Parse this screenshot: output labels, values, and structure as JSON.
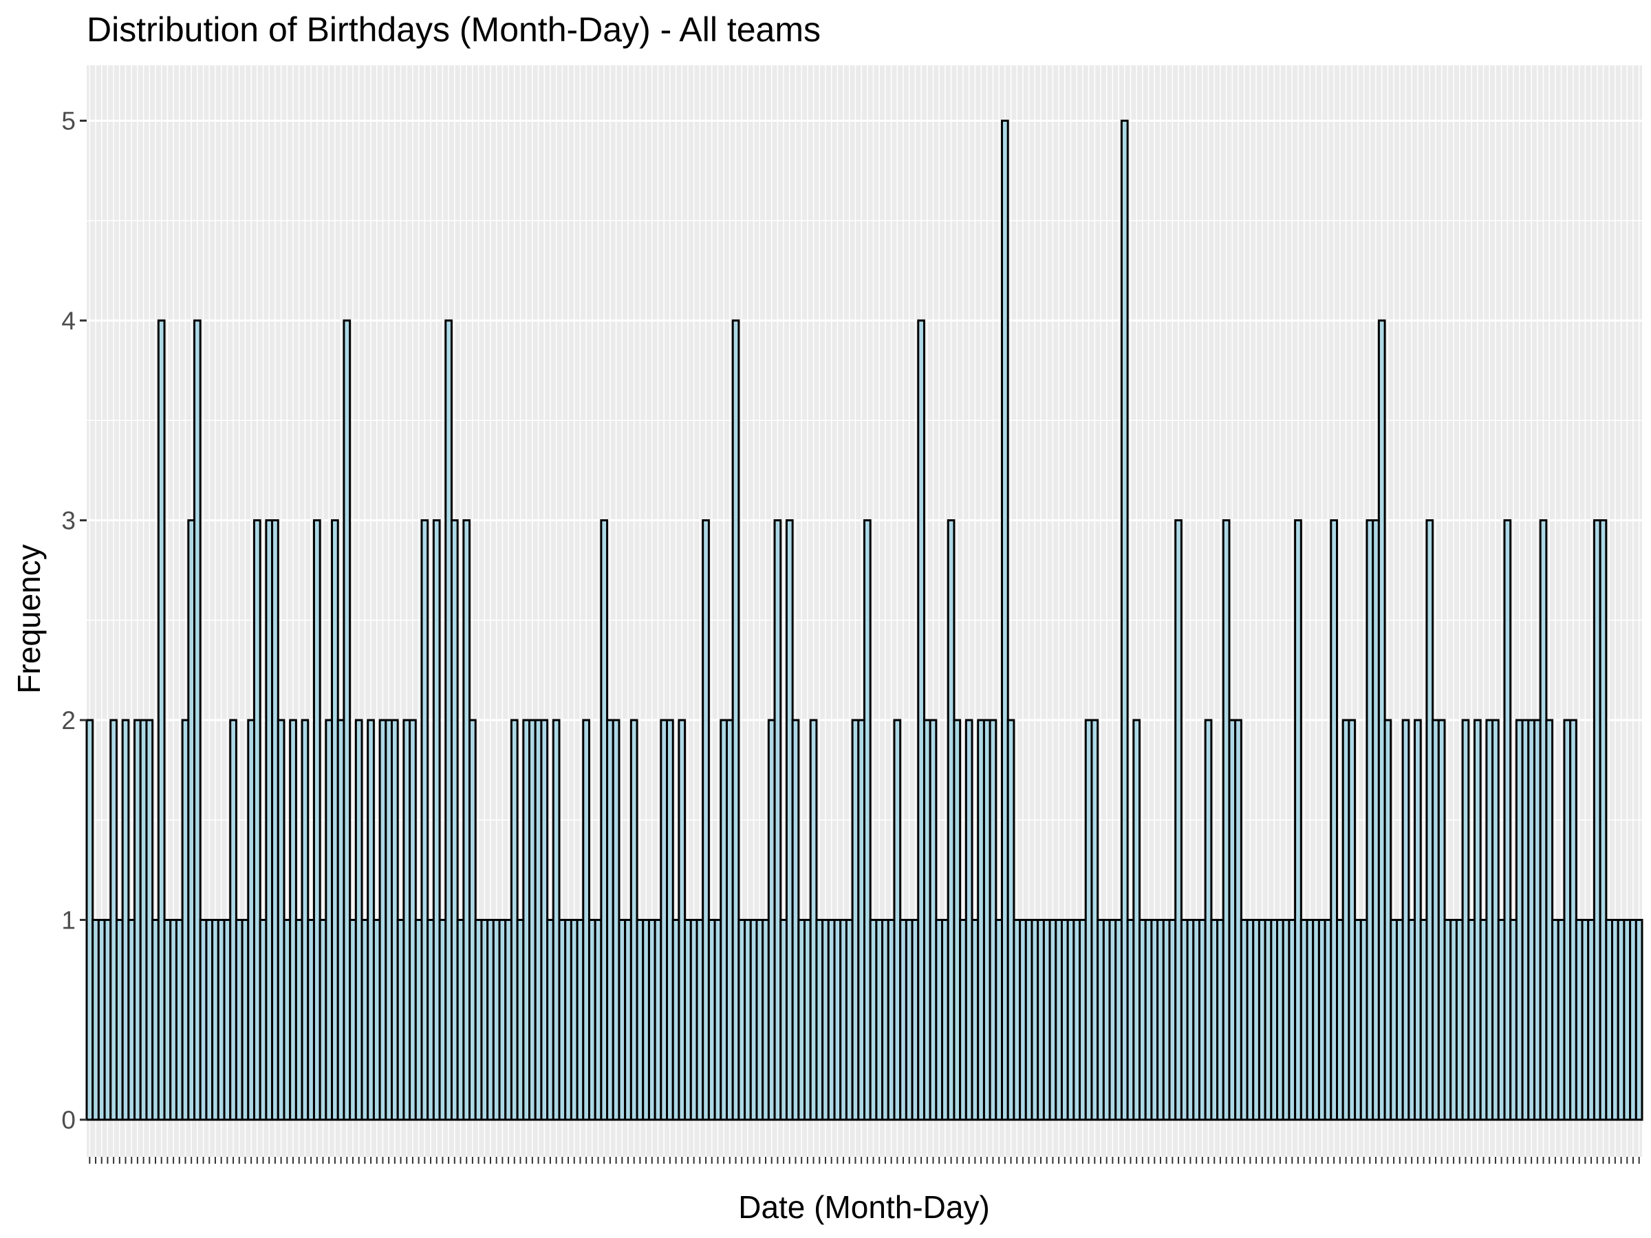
{
  "chart_data": {
    "type": "bar",
    "title": "Distribution of Birthdays (Month-Day) - All teams",
    "xlabel": "Date (Month-Day)",
    "ylabel": "Frequency",
    "ylim": [
      0,
      5.25
    ],
    "yticks": [
      0,
      1,
      2,
      3,
      4,
      5
    ],
    "x_tick_labels_shown": false,
    "grid": true,
    "colors": {
      "bar_fill": "#add8e6",
      "bar_stroke": "#000000",
      "panel_bg": "#ebebeb",
      "grid": "#ffffff"
    },
    "values": [
      2,
      1,
      1,
      1,
      2,
      1,
      2,
      1,
      2,
      2,
      2,
      1,
      4,
      1,
      1,
      1,
      2,
      3,
      4,
      1,
      1,
      1,
      1,
      1,
      2,
      1,
      1,
      2,
      3,
      1,
      3,
      3,
      2,
      1,
      2,
      1,
      2,
      1,
      3,
      1,
      2,
      3,
      2,
      4,
      1,
      2,
      1,
      2,
      1,
      2,
      2,
      2,
      1,
      2,
      2,
      1,
      3,
      1,
      3,
      1,
      4,
      3,
      1,
      3,
      2,
      1,
      1,
      1,
      1,
      1,
      1,
      2,
      1,
      2,
      2,
      2,
      2,
      1,
      2,
      1,
      1,
      1,
      1,
      2,
      1,
      1,
      3,
      2,
      2,
      1,
      1,
      2,
      1,
      1,
      1,
      1,
      2,
      2,
      1,
      2,
      1,
      1,
      1,
      3,
      1,
      1,
      2,
      2,
      4,
      1,
      1,
      1,
      1,
      1,
      2,
      3,
      1,
      3,
      2,
      1,
      1,
      2,
      1,
      1,
      1,
      1,
      1,
      1,
      2,
      2,
      3,
      1,
      1,
      1,
      1,
      2,
      1,
      1,
      1,
      4,
      2,
      2,
      1,
      1,
      3,
      2,
      1,
      2,
      1,
      2,
      2,
      2,
      1,
      5,
      2,
      1,
      1,
      1,
      1,
      1,
      1,
      1,
      1,
      1,
      1,
      1,
      1,
      2,
      2,
      1,
      1,
      1,
      1,
      5,
      1,
      2,
      1,
      1,
      1,
      1,
      1,
      1,
      3,
      1,
      1,
      1,
      1,
      2,
      1,
      1,
      3,
      2,
      2,
      1,
      1,
      1,
      1,
      1,
      1,
      1,
      1,
      1,
      3,
      1,
      1,
      1,
      1,
      1,
      3,
      1,
      2,
      2,
      1,
      1,
      3,
      3,
      4,
      2,
      1,
      1,
      2,
      1,
      2,
      1,
      3,
      2,
      2,
      1,
      1,
      1,
      2,
      1,
      2,
      1,
      2,
      2,
      1,
      3,
      1,
      2,
      2,
      2,
      2,
      3,
      2,
      1,
      1,
      2,
      2,
      1,
      1,
      1,
      3,
      3,
      1,
      1,
      1,
      1,
      1,
      1
    ]
  }
}
